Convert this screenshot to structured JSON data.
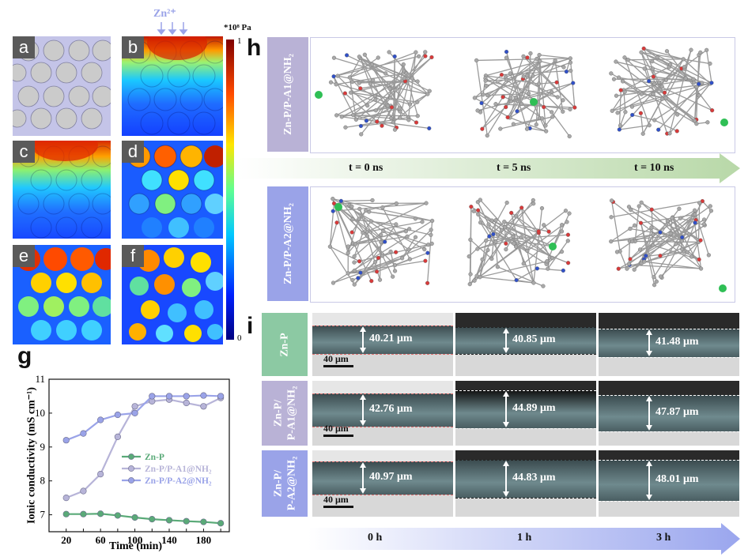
{
  "stress_maps": {
    "zn_label": "Zn²⁺",
    "colorbar_unit": "*10⁸ Pa",
    "colorbar_max": "1",
    "colorbar_min": "0",
    "panels": [
      "a",
      "b",
      "c",
      "d",
      "e",
      "f"
    ]
  },
  "panel_g": {
    "letter": "g",
    "chart_data": {
      "type": "line",
      "x": [
        20,
        40,
        60,
        80,
        100,
        120,
        140,
        160,
        180,
        200
      ],
      "series": [
        {
          "name": "Zn-P",
          "values": [
            7.02,
            7.02,
            7.03,
            6.98,
            6.92,
            6.87,
            6.84,
            6.81,
            6.79,
            6.75
          ],
          "color": "#5aaa78"
        },
        {
          "name": "Zn-P/P-A1@NH₂",
          "values": [
            7.5,
            7.7,
            8.2,
            9.3,
            10.2,
            10.35,
            10.4,
            10.3,
            10.2,
            10.45
          ],
          "color": "#b7b4d8"
        },
        {
          "name": "Zn-P/P-A2@NH₂",
          "values": [
            9.2,
            9.4,
            9.8,
            9.95,
            10.0,
            10.5,
            10.5,
            10.5,
            10.52,
            10.5
          ],
          "color": "#9aa3e8"
        }
      ],
      "xlabel": "Time (min)",
      "ylabel": "Ionic conductivity (mS cm⁻¹)",
      "xlim": [
        0,
        210
      ],
      "ylim": [
        6.5,
        11
      ],
      "xticks": [
        "20",
        "40",
        "60",
        "80",
        "100",
        "120",
        "140",
        "160",
        "180",
        "200"
      ],
      "xtick_values": [
        20,
        40,
        60,
        80,
        100,
        120,
        140,
        160,
        180,
        200
      ],
      "yticks": [
        "7",
        "8",
        "9",
        "10",
        "11"
      ],
      "ytick_values": [
        7,
        8,
        9,
        10,
        11
      ]
    }
  },
  "panel_h": {
    "letter": "h",
    "row1_label": "Zn-P/P-A1@NH₂",
    "row2_label": "Zn-P/P-A2@NH₂",
    "times": [
      "t = 0 ns",
      "t = 5 ns",
      "t = 10 ns"
    ]
  },
  "panel_i": {
    "letter": "i",
    "rows": [
      {
        "label": "Zn-P",
        "values": [
          "40.21 μm",
          "40.85 μm",
          "41.48 μm"
        ]
      },
      {
        "label_line1": "Zn-P/",
        "label_line2": "P-A1@NH₂",
        "values": [
          "42.76 μm",
          "44.89 μm",
          "47.87 μm"
        ]
      },
      {
        "label_line1": "Zn-P/",
        "label_line2": "P-A2@NH₂",
        "values": [
          "40.97 μm",
          "44.83 μm",
          "48.01 μm"
        ]
      }
    ],
    "scale": "40 μm",
    "times": [
      "0 h",
      "1 h",
      "3 h"
    ]
  },
  "colors": {
    "green_label": "#8cc9a3",
    "purple_label": "#b9b2d6",
    "blue_label": "#9aa3e8",
    "arrow_green": "#cfe3c4",
    "arrow_blue": "#aab4ef"
  }
}
